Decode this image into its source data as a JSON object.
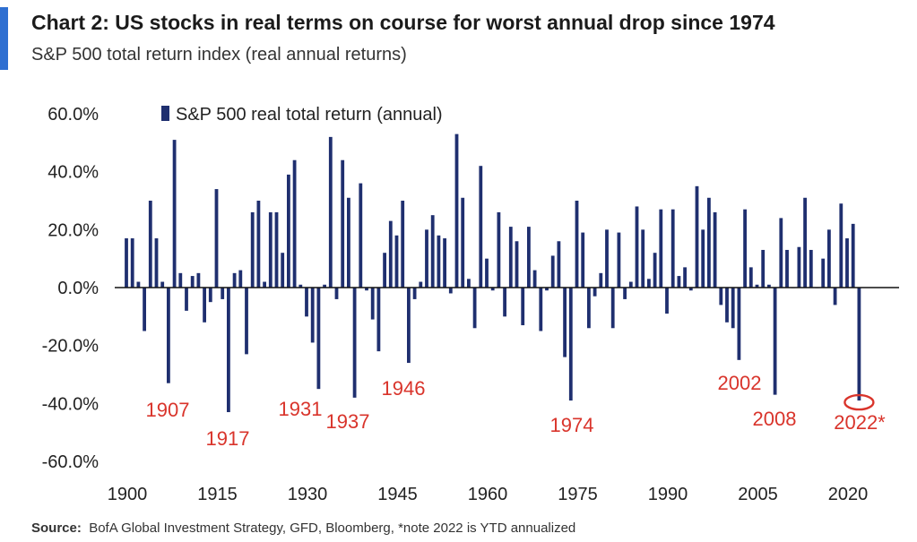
{
  "header": {
    "title": "Chart 2: US stocks in real terms on course for worst annual  drop since 1974",
    "subtitle": "S&P 500 total return index (real annual returns)"
  },
  "footer": {
    "source_label": "Source:",
    "source_text": "BofA Global Investment Strategy, GFD, Bloomberg, *note 2022  is YTD annualized"
  },
  "colors": {
    "bar": "#1f2f6f",
    "annotation": "#d9342b",
    "accent": "#2f6fd1"
  },
  "chart_data": {
    "type": "bar",
    "title": "Chart 2: US stocks in real terms on course for worst annual  drop since 1974",
    "subtitle": "S&P 500 total return index (real annual returns)",
    "xlabel": "",
    "ylabel": "",
    "legend": {
      "label": "S&P 500 real total return (annual)",
      "placement": "top-left"
    },
    "x_ticks": [
      "1900",
      "1915",
      "1930",
      "1945",
      "1960",
      "1975",
      "1990",
      "2005",
      "2020"
    ],
    "y_ticks": [
      "60.0%",
      "40.0%",
      "20.0%",
      "0.0%",
      "-20.0%",
      "-40.0%",
      "-60.0%"
    ],
    "ylim": [
      -60,
      60
    ],
    "xlim": [
      1900,
      2022
    ],
    "grid": false,
    "series": [
      {
        "name": "S&P 500 real total return (annual)",
        "x": [
          1900,
          1901,
          1902,
          1903,
          1904,
          1905,
          1906,
          1907,
          1908,
          1909,
          1910,
          1911,
          1912,
          1913,
          1914,
          1915,
          1916,
          1917,
          1918,
          1919,
          1920,
          1921,
          1922,
          1923,
          1924,
          1925,
          1926,
          1927,
          1928,
          1929,
          1930,
          1931,
          1932,
          1933,
          1934,
          1935,
          1936,
          1937,
          1938,
          1939,
          1940,
          1941,
          1942,
          1943,
          1944,
          1945,
          1946,
          1947,
          1948,
          1949,
          1950,
          1951,
          1952,
          1953,
          1954,
          1955,
          1956,
          1957,
          1958,
          1959,
          1960,
          1961,
          1962,
          1963,
          1964,
          1965,
          1966,
          1967,
          1968,
          1969,
          1970,
          1971,
          1972,
          1973,
          1974,
          1975,
          1976,
          1977,
          1978,
          1979,
          1980,
          1981,
          1982,
          1983,
          1984,
          1985,
          1986,
          1987,
          1988,
          1989,
          1990,
          1991,
          1992,
          1993,
          1994,
          1995,
          1996,
          1997,
          1998,
          1999,
          2000,
          2001,
          2002,
          2003,
          2004,
          2005,
          2006,
          2007,
          2008,
          2009,
          2010,
          2011,
          2012,
          2013,
          2014,
          2015,
          2016,
          2017,
          2018,
          2019,
          2020,
          2021,
          2022
        ],
        "values": [
          17,
          17,
          2,
          -15,
          30,
          17,
          2,
          -33,
          51,
          5,
          -8,
          4,
          5,
          -12,
          -5,
          34,
          -4,
          -43,
          5,
          6,
          -23,
          26,
          30,
          2,
          26,
          26,
          12,
          39,
          44,
          1,
          -10,
          -19,
          -35,
          1,
          52,
          -4,
          44,
          31,
          -38,
          36,
          -1,
          -11,
          -22,
          12,
          23,
          18,
          30,
          -26,
          -4,
          2,
          20,
          25,
          18,
          17,
          -2,
          53,
          31,
          3,
          -14,
          42,
          10,
          -1,
          26,
          -10,
          21,
          16,
          -13,
          21,
          6,
          -15,
          -1,
          11,
          16,
          -24,
          -39,
          30,
          19,
          -14,
          -3,
          5,
          20,
          -14,
          19,
          -4,
          2,
          28,
          20,
          3,
          12,
          27,
          -9,
          27,
          4,
          7,
          -1,
          35,
          20,
          31,
          26,
          -6,
          -12,
          -14,
          -25,
          27,
          7,
          1,
          13,
          1,
          -37,
          24,
          13,
          0,
          14,
          31,
          13,
          0,
          10,
          20,
          -6,
          29,
          17,
          22,
          -39
        ]
      }
    ],
    "annotations": [
      {
        "label": "1907",
        "year": 1907
      },
      {
        "label": "1917",
        "year": 1917
      },
      {
        "label": "1931",
        "year": 1931
      },
      {
        "label": "1937",
        "year": 1937
      },
      {
        "label": "1946",
        "year": 1946
      },
      {
        "label": "1974",
        "year": 1974
      },
      {
        "label": "2002",
        "year": 2002
      },
      {
        "label": "2008",
        "year": 2008
      },
      {
        "label": "2022*",
        "year": 2022,
        "highlighted": true
      }
    ]
  }
}
